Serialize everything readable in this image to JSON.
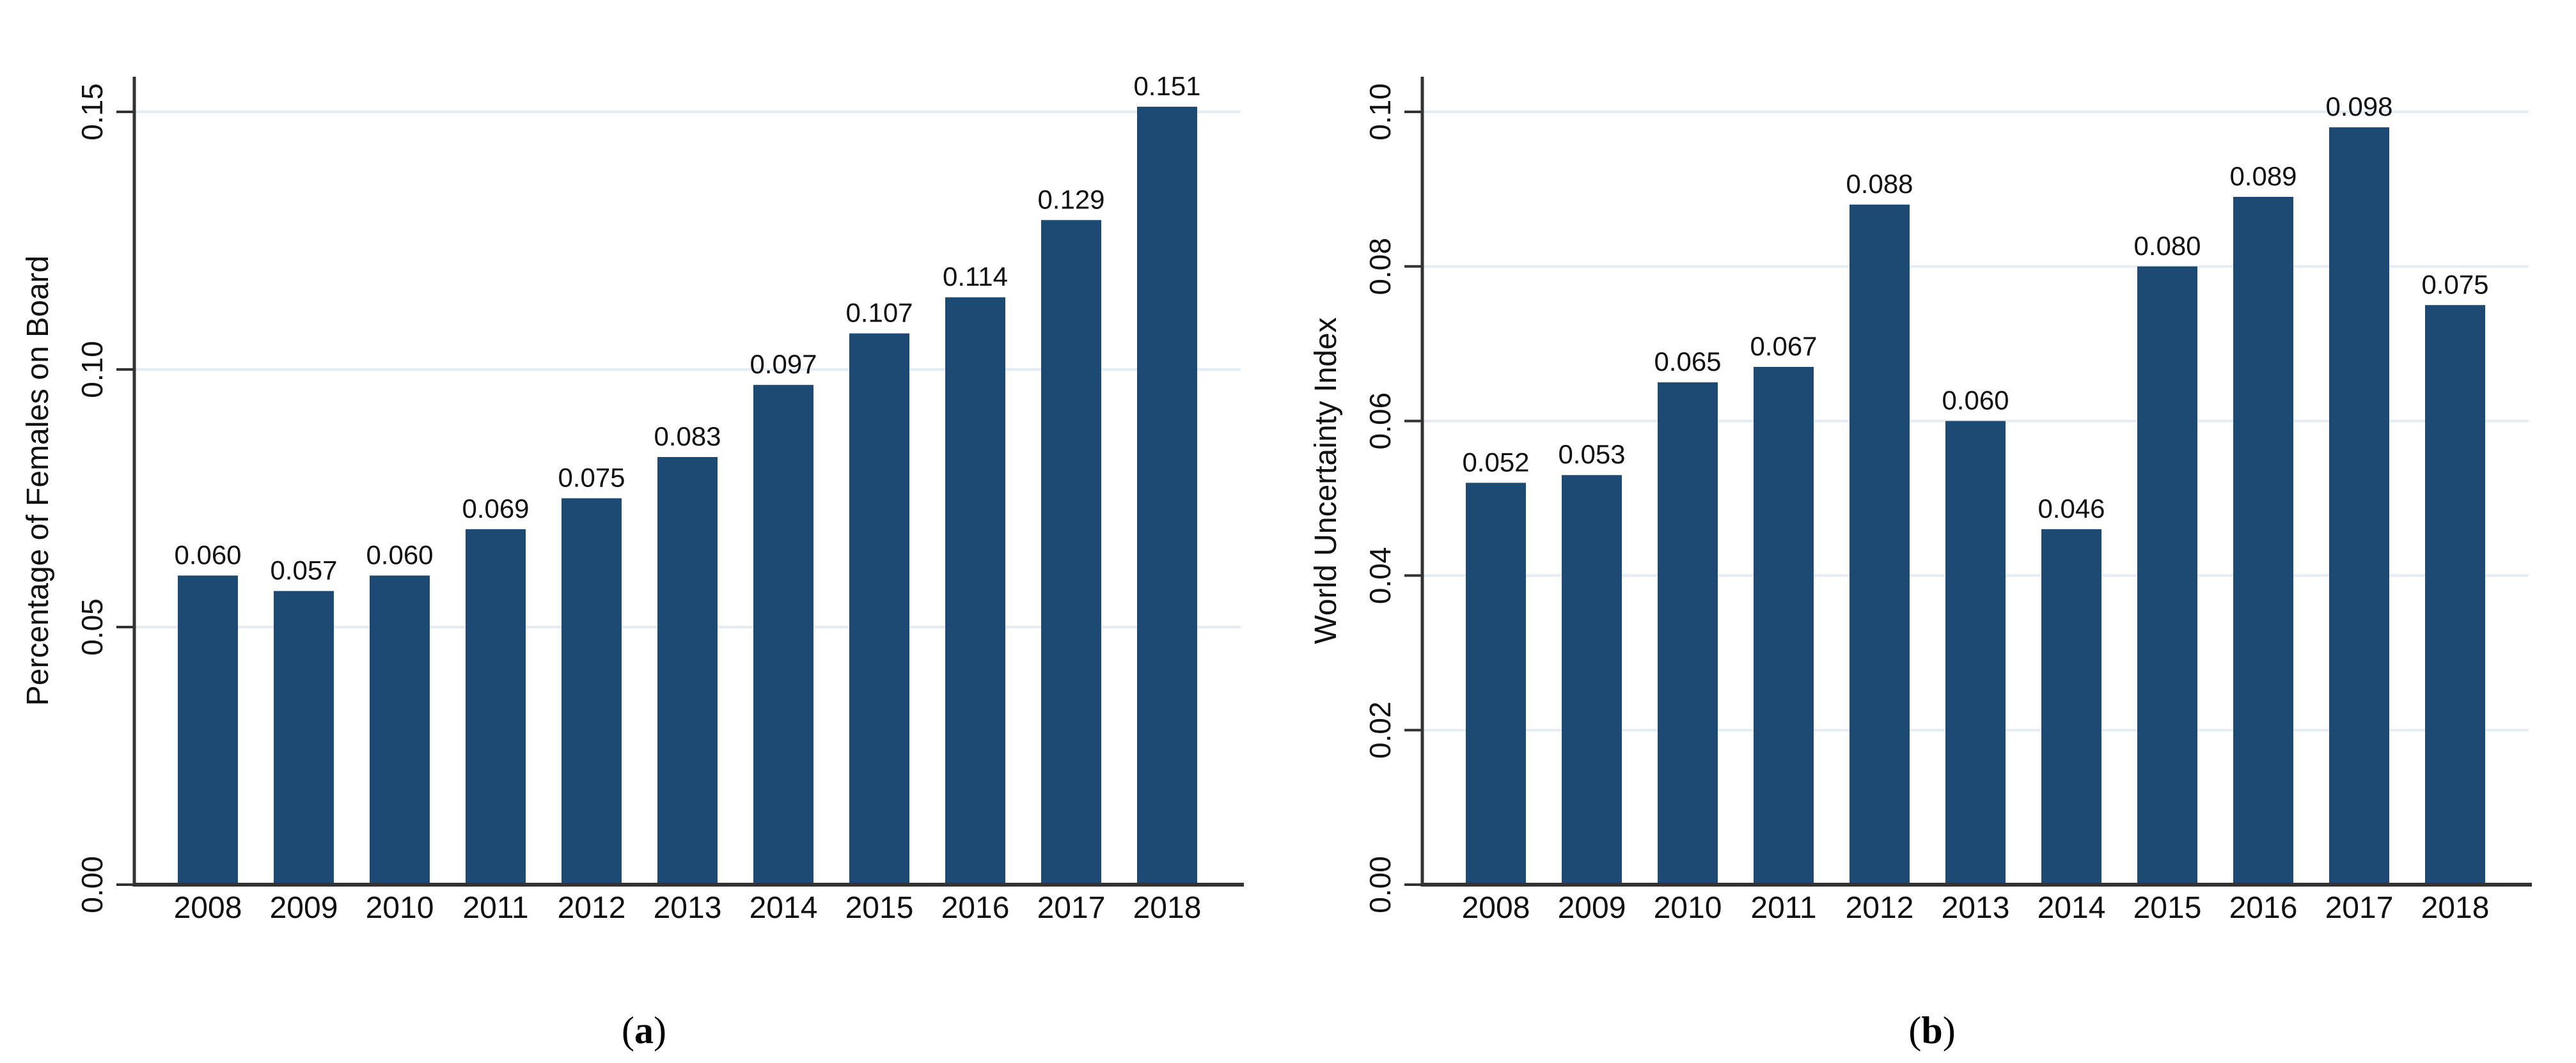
{
  "figure": {
    "background": "#ffffff",
    "panel_count": 2
  },
  "chart_data": [
    {
      "type": "bar",
      "title": "",
      "xlabel": "",
      "ylabel": "Percentage of Females on Board",
      "caption": {
        "open": "(",
        "letter": "a",
        "close": ")"
      },
      "categories": [
        "2008",
        "2009",
        "2010",
        "2011",
        "2012",
        "2013",
        "2014",
        "2015",
        "2016",
        "2017",
        "2018"
      ],
      "values": [
        0.06,
        0.057,
        0.06,
        0.069,
        0.075,
        0.083,
        0.097,
        0.107,
        0.114,
        0.129,
        0.151
      ],
      "bar_labels": [
        "0.060",
        "0.057",
        "0.060",
        "0.069",
        "0.075",
        "0.083",
        "0.097",
        "0.107",
        "0.114",
        "0.129",
        "0.151"
      ],
      "ylim": [
        0,
        0.155
      ],
      "yticks": {
        "values": [
          0,
          0.05,
          0.1,
          0.15
        ],
        "labels": [
          "0.00",
          "0.05",
          "0.10",
          "0.15"
        ]
      },
      "grid": true,
      "legend": "none",
      "colors": {
        "bar": "#1c4a72",
        "grid": "#e3edf3",
        "axis": "#333333",
        "text": "#111111"
      }
    },
    {
      "type": "bar",
      "title": "",
      "xlabel": "",
      "ylabel": "World Uncertainty Index",
      "caption": {
        "open": "(",
        "letter": "b",
        "close": ")"
      },
      "categories": [
        "2008",
        "2009",
        "2010",
        "2011",
        "2012",
        "2013",
        "2014",
        "2015",
        "2016",
        "2017",
        "2018"
      ],
      "values": [
        0.052,
        0.053,
        0.065,
        0.067,
        0.088,
        0.06,
        0.046,
        0.08,
        0.089,
        0.098,
        0.075
      ],
      "bar_labels": [
        "0.052",
        "0.053",
        "0.065",
        "0.067",
        "0.088",
        "0.060",
        "0.046",
        "0.080",
        "0.089",
        "0.098",
        "0.075"
      ],
      "ylim": [
        0,
        0.103
      ],
      "yticks": {
        "values": [
          0,
          0.02,
          0.04,
          0.06,
          0.08,
          0.1
        ],
        "labels": [
          "0.00",
          "0.02",
          "0.04",
          "0.06",
          "0.08",
          "0.10"
        ]
      },
      "grid": true,
      "legend": "none",
      "colors": {
        "bar": "#1c4a72",
        "grid": "#e3edf3",
        "axis": "#333333",
        "text": "#111111"
      }
    }
  ]
}
